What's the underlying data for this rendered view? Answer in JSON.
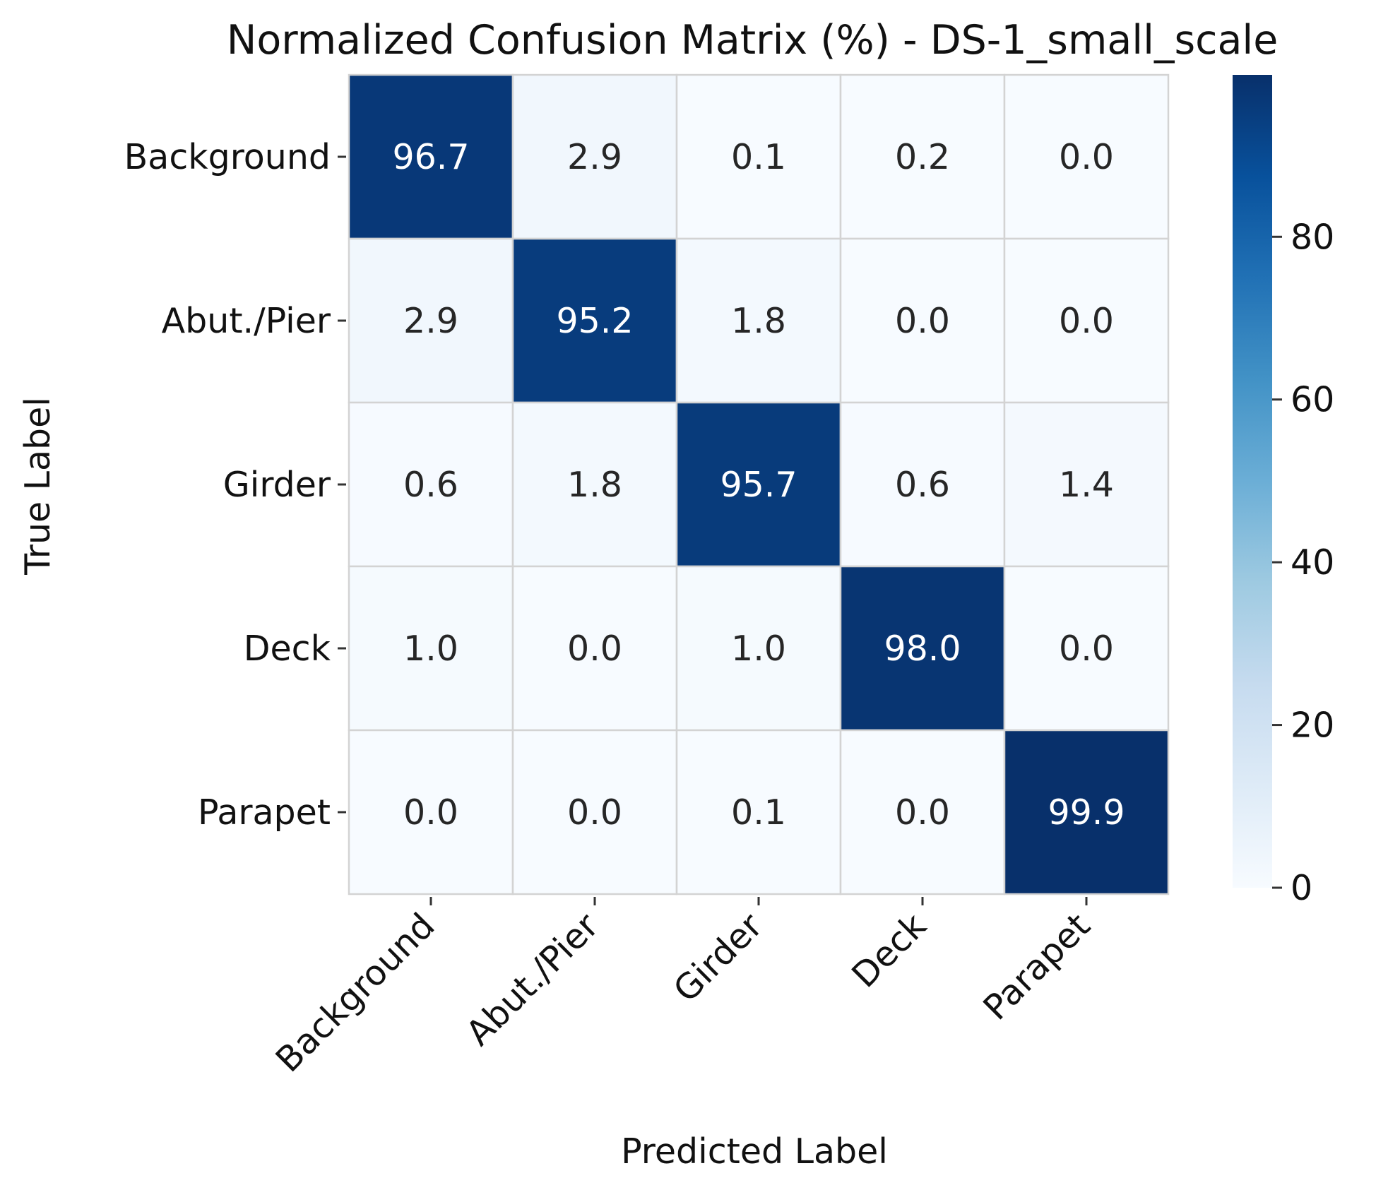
{
  "chart_data": {
    "type": "heatmap",
    "title": "Normalized Confusion Matrix (%) - DS-1_small_scale",
    "xlabel": "Predicted Label",
    "ylabel": "True Label",
    "x_categories": [
      "Background",
      "Abut./Pier",
      "Girder",
      "Deck",
      "Parapet"
    ],
    "y_categories": [
      "Background",
      "Abut./Pier",
      "Girder",
      "Deck",
      "Parapet"
    ],
    "values": [
      [
        96.7,
        2.9,
        0.1,
        0.2,
        0.0
      ],
      [
        2.9,
        95.2,
        1.8,
        0.0,
        0.0
      ],
      [
        0.6,
        1.8,
        95.7,
        0.6,
        1.4
      ],
      [
        1.0,
        0.0,
        1.0,
        98.0,
        0.0
      ],
      [
        0.0,
        0.0,
        0.1,
        0.0,
        99.9
      ]
    ],
    "value_format": "0.1f",
    "colormap": "Blues",
    "colorbar": {
      "range": [
        0,
        99.9
      ],
      "ticks": [
        0,
        20,
        40,
        60,
        80
      ],
      "tick_labels": [
        "0",
        "20",
        "40",
        "60",
        "80"
      ]
    },
    "grid": false,
    "cell_border_color": "#d3d3d3"
  }
}
